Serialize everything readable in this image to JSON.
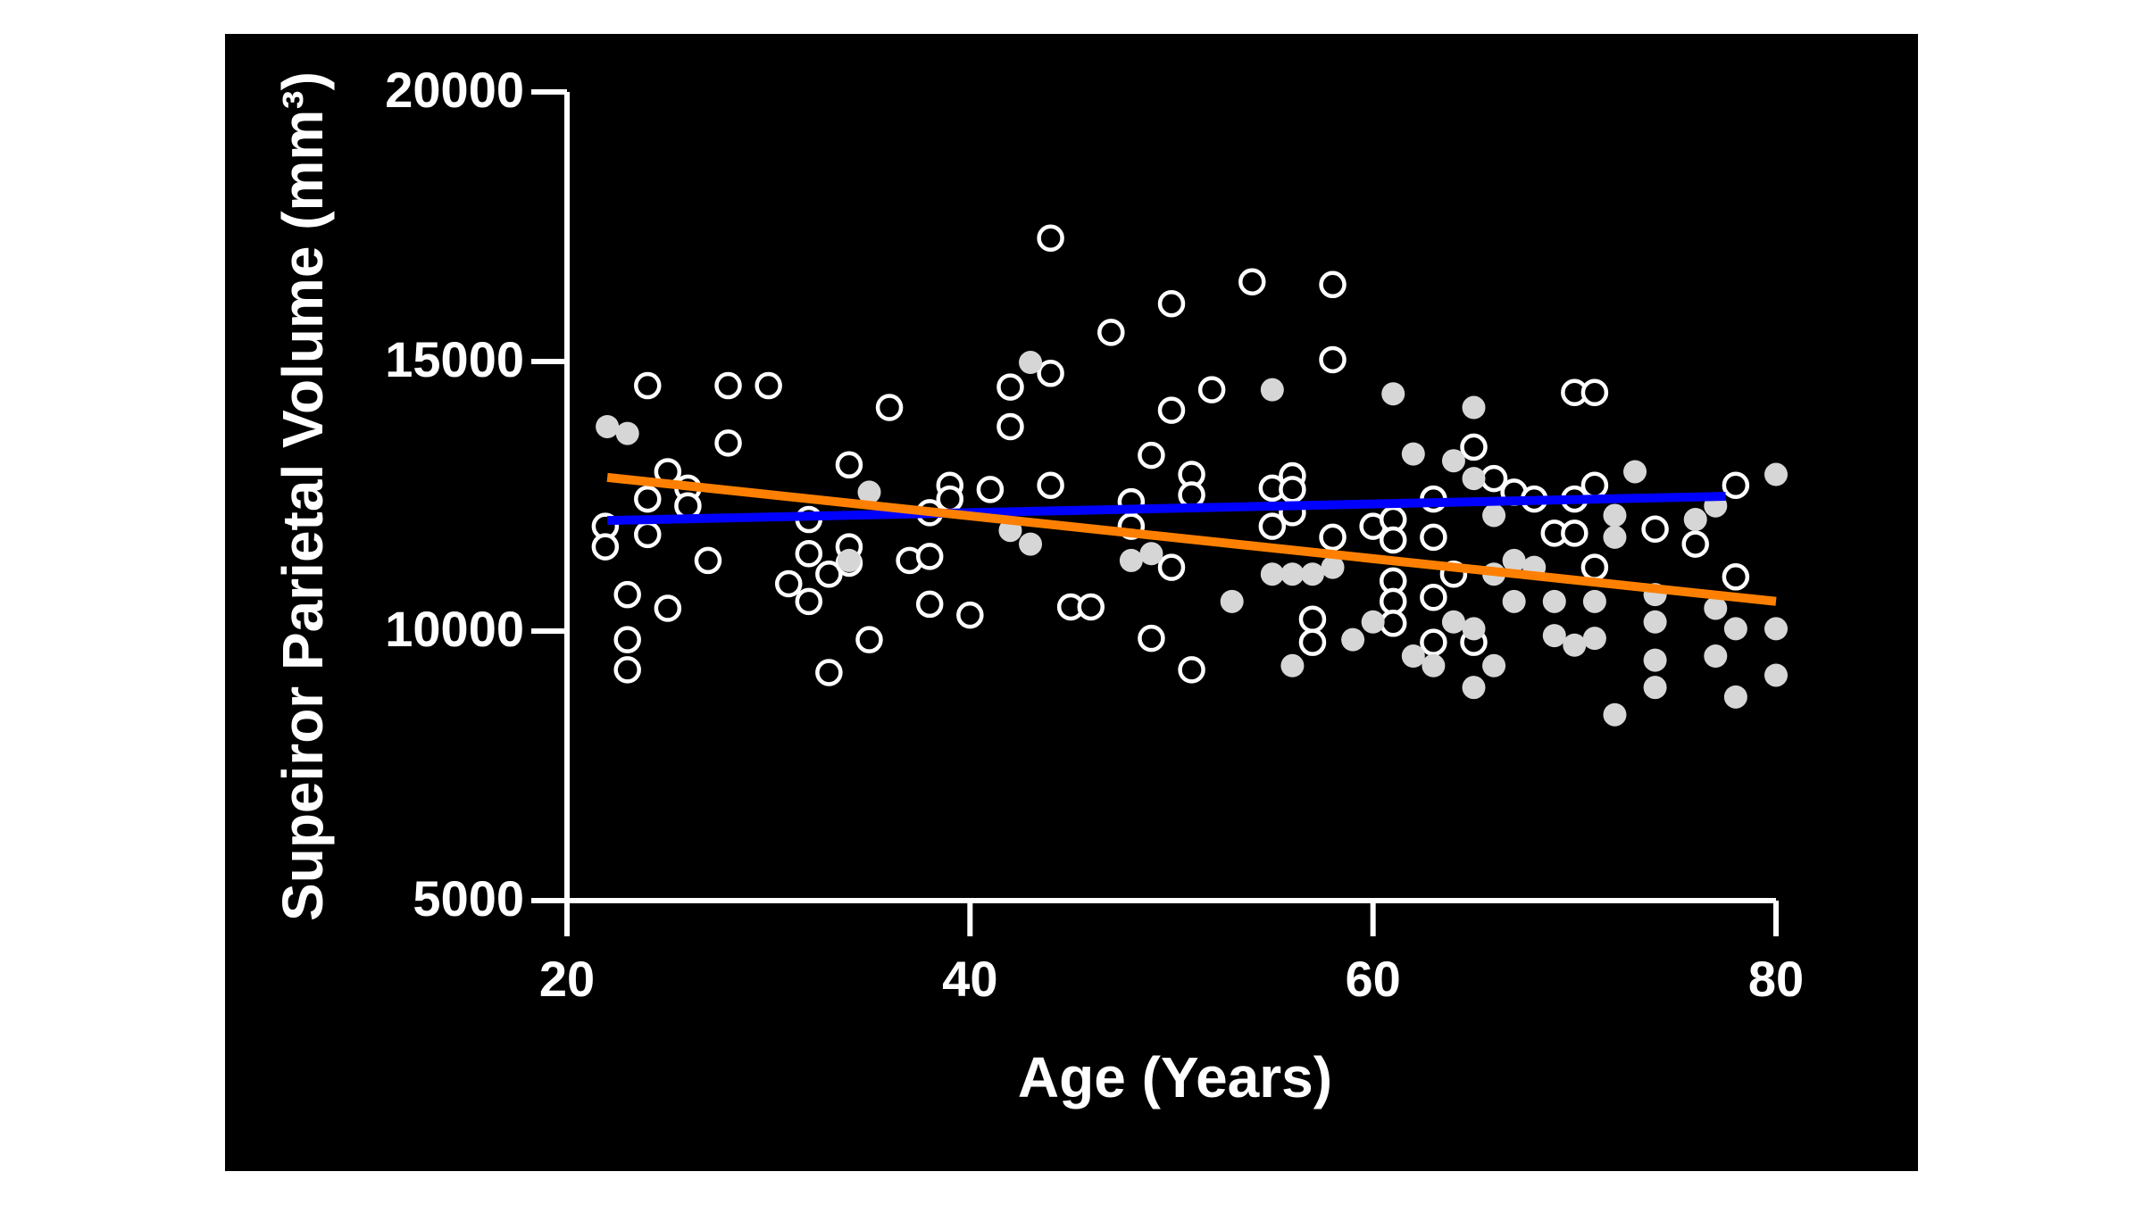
{
  "chart_data": {
    "type": "scatter",
    "x_label": "Age (Years)",
    "y_label": "Supeiror Parietal Volume (mm³)",
    "xlim": [
      20,
      80
    ],
    "ylim": [
      5000,
      20000
    ],
    "xticks": [
      20,
      40,
      60,
      80
    ],
    "yticks": [
      5000,
      10000,
      15000,
      20000
    ],
    "background": "#000000",
    "axis_color": "#ffffff",
    "series": [
      {
        "type": "scatter",
        "marker": "open",
        "color": "#ffffff",
        "x": [
          21.9,
          21.9,
          23,
          23,
          23,
          24,
          24,
          24,
          25,
          25,
          26,
          26,
          27,
          28,
          28,
          30,
          31,
          32,
          32,
          32,
          33,
          33,
          34,
          34,
          34,
          35,
          36,
          37,
          38,
          38,
          38,
          39,
          39,
          40,
          41,
          42,
          42,
          44,
          44,
          44,
          45,
          46,
          47,
          48,
          48,
          49,
          49,
          50,
          50,
          50,
          51,
          51,
          51,
          52,
          54,
          55,
          55,
          56,
          56,
          56,
          57,
          57,
          58,
          58,
          58,
          60,
          61,
          61,
          61,
          61,
          61,
          63,
          63,
          63,
          63,
          64,
          65,
          65,
          66,
          67,
          68,
          69,
          70,
          70,
          70,
          71,
          71,
          71,
          74,
          76,
          78,
          78
        ],
        "values": [
          11943,
          11563,
          10676,
          9840,
          9282,
          14552,
          12449,
          11790,
          12956,
          10422,
          12652,
          12323,
          11309,
          14552,
          13488,
          14552,
          10878,
          12069,
          11436,
          10549,
          11056,
          9231,
          13083,
          11563,
          11259,
          9840,
          14147,
          11309,
          12196,
          11385,
          10498,
          12703,
          12449,
          10296,
          12627,
          14527,
          13792,
          17289,
          14780,
          12703,
          10448,
          10448,
          15540,
          12399,
          11943,
          13260,
          9865,
          16072,
          14096,
          11182,
          12905,
          12525,
          9282,
          14476,
          16478,
          12652,
          11943,
          12880,
          12627,
          12196,
          10220,
          9790,
          16427,
          15034,
          11740,
          11943,
          12069,
          11689,
          10929,
          10549,
          10144,
          12449,
          11740,
          10625,
          9790,
          11056,
          13412,
          9790,
          12829,
          12576,
          12449,
          11816,
          12449,
          11816,
          14425,
          14425,
          12703,
          11182,
          11892,
          11613,
          12703,
          11005
        ]
      },
      {
        "type": "scatter",
        "marker": "filled",
        "color": "#d6d6d6",
        "x": [
          22,
          23,
          35,
          34,
          42,
          43,
          43,
          48,
          49,
          53,
          55,
          55,
          56,
          56,
          57,
          58,
          59,
          60,
          61,
          62,
          62,
          63,
          64,
          64,
          65,
          65,
          65,
          65,
          66,
          66,
          66,
          67,
          67,
          68,
          69,
          69,
          70,
          71,
          71,
          72,
          72,
          72,
          73,
          74,
          74,
          74,
          74,
          76,
          77,
          77,
          77,
          78,
          78,
          80,
          80,
          80
        ],
        "values": [
          13792,
          13666,
          12576,
          11309,
          11867,
          11613,
          14983,
          11309,
          11436,
          10549,
          14476,
          11056,
          11056,
          9358,
          11056,
          11182,
          9840,
          10169,
          14400,
          13285,
          9536,
          9358,
          13159,
          10169,
          14147,
          12829,
          10043,
          8954,
          12145,
          11056,
          9358,
          11309,
          10549,
          11182,
          10549,
          9916,
          9739,
          10549,
          9865,
          8448,
          12145,
          11740,
          12956,
          10676,
          10169,
          9460,
          8954,
          12069,
          12323,
          10422,
          9536,
          8777,
          10043,
          12905,
          10043,
          9181
        ]
      },
      {
        "type": "line",
        "color": "#0000ff",
        "x": [
          22,
          77.5
        ],
        "values": [
          12050,
          12500
        ]
      },
      {
        "type": "line",
        "color": "#ff8000",
        "x": [
          22,
          80
        ],
        "values": [
          12850,
          10550
        ]
      }
    ]
  }
}
